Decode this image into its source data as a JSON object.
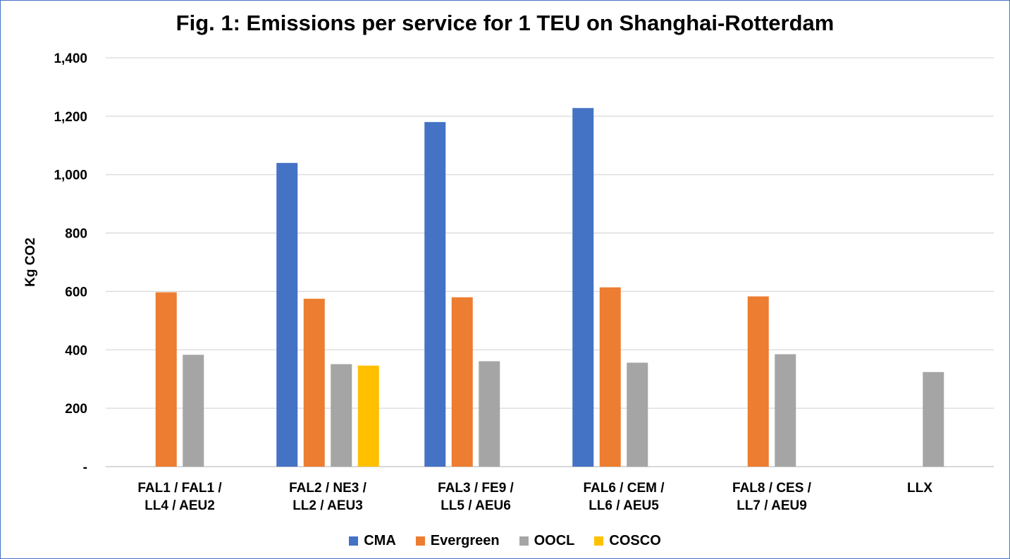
{
  "chart_data": {
    "type": "bar",
    "title": "Fig. 1: Emissions per service for 1 TEU on Shanghai-Rotterdam",
    "xlabel": "",
    "ylabel": "Kg CO2",
    "ylim": [
      0,
      1400
    ],
    "yticks": [
      {
        "value": 0,
        "label": "-"
      },
      {
        "value": 200,
        "label": "200"
      },
      {
        "value": 400,
        "label": "400"
      },
      {
        "value": 600,
        "label": "600"
      },
      {
        "value": 800,
        "label": "800"
      },
      {
        "value": 1000,
        "label": "1,000"
      },
      {
        "value": 1200,
        "label": "1,200"
      },
      {
        "value": 1400,
        "label": "1,400"
      }
    ],
    "grid": true,
    "legend_position": "bottom",
    "categories": [
      [
        "FAL1 / FAL1 /",
        "LL4 / AEU2"
      ],
      [
        "FAL2 / NE3 /",
        "LL2 / AEU3"
      ],
      [
        "FAL3 / FE9 /",
        "LL5 / AEU6"
      ],
      [
        "FAL6 / CEM /",
        "LL6 / AEU5"
      ],
      [
        "FAL8 / CES /",
        "LL7 / AEU9"
      ],
      [
        "LLX"
      ]
    ],
    "series": [
      {
        "name": "CMA",
        "color": "#4472c4",
        "values": [
          null,
          1040,
          1180,
          1228,
          null,
          null
        ]
      },
      {
        "name": "Evergreen",
        "color": "#ed7d31",
        "values": [
          597,
          575,
          580,
          614,
          583,
          null
        ]
      },
      {
        "name": "OOCL",
        "color": "#a5a5a5",
        "values": [
          383,
          351,
          361,
          356,
          385,
          324
        ]
      },
      {
        "name": "COSCO",
        "color": "#ffc000",
        "values": [
          null,
          346,
          null,
          null,
          null,
          null
        ]
      }
    ]
  }
}
